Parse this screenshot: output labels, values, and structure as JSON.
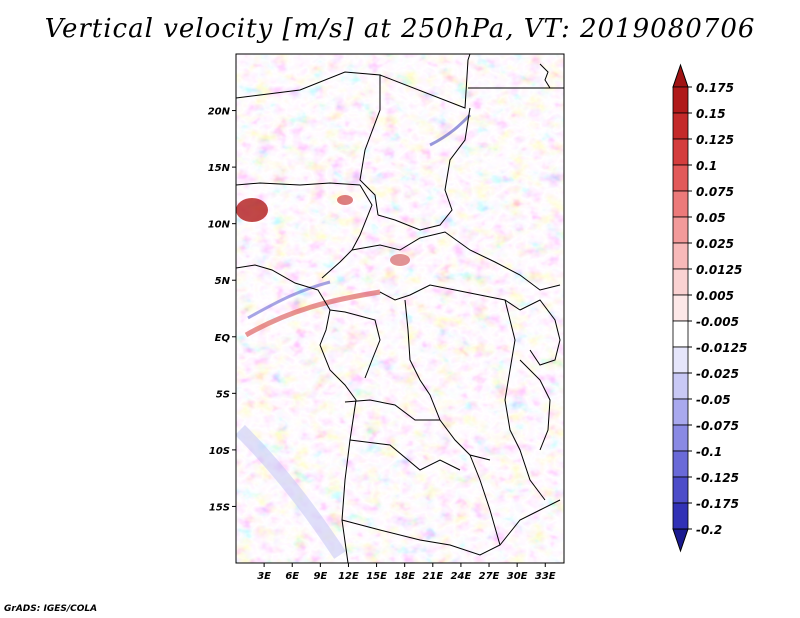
{
  "title": "Vertical velocity [m/s] at 250hPa, VT: 2019080706",
  "credit": "GrADS: IGES/COLA",
  "map": {
    "lon_range": [
      0,
      35
    ],
    "lat_range": [
      -20,
      25
    ],
    "lat_ticks": [
      {
        "value": 20,
        "label": "20N"
      },
      {
        "value": 15,
        "label": "15N"
      },
      {
        "value": 10,
        "label": "10N"
      },
      {
        "value": 5,
        "label": "5N"
      },
      {
        "value": 0,
        "label": "EQ"
      },
      {
        "value": -5,
        "label": "5S"
      },
      {
        "value": -10,
        "label": "10S"
      },
      {
        "value": -15,
        "label": "15S"
      }
    ],
    "lon_ticks": [
      {
        "value": 3,
        "label": "3E"
      },
      {
        "value": 6,
        "label": "6E"
      },
      {
        "value": 9,
        "label": "9E"
      },
      {
        "value": 12,
        "label": "12E"
      },
      {
        "value": 15,
        "label": "15E"
      },
      {
        "value": 18,
        "label": "18E"
      },
      {
        "value": 21,
        "label": "21E"
      },
      {
        "value": 24,
        "label": "24E"
      },
      {
        "value": 27,
        "label": "27E"
      },
      {
        "value": 30,
        "label": "30E"
      },
      {
        "value": 33,
        "label": "33E"
      }
    ]
  },
  "colorbar": {
    "levels": [
      {
        "label": "0.175",
        "color": "#b01a1a"
      },
      {
        "label": "0.15",
        "color": "#c42a2a"
      },
      {
        "label": "0.125",
        "color": "#d43d3d"
      },
      {
        "label": "0.1",
        "color": "#e25a5a"
      },
      {
        "label": "0.075",
        "color": "#ec7a7a"
      },
      {
        "label": "0.05",
        "color": "#f29a9a"
      },
      {
        "label": "0.025",
        "color": "#f7b9b9"
      },
      {
        "label": "0.0125",
        "color": "#fad2d2"
      },
      {
        "label": "0.005",
        "color": "#fde8e8"
      },
      {
        "label": "-0.005",
        "color": "#ffffff"
      },
      {
        "label": "-0.0125",
        "color": "#e6e6fb"
      },
      {
        "label": "-0.025",
        "color": "#c9c9f5"
      },
      {
        "label": "-0.05",
        "color": "#a9a9ee"
      },
      {
        "label": "-0.075",
        "color": "#8a8ae4"
      },
      {
        "label": "-0.1",
        "color": "#6a6ad8"
      },
      {
        "label": "-0.125",
        "color": "#4d4dc9"
      },
      {
        "label": "-0.175",
        "color": "#3232b6"
      },
      {
        "label": "-0.2",
        "color": "#1e1e9c"
      }
    ],
    "low_end_color": "#1a1a90",
    "high_end_color": "#a01414"
  }
}
